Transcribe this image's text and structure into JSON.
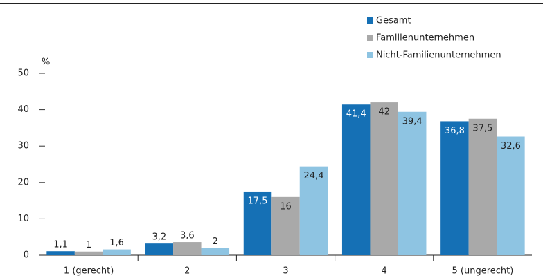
{
  "chart_data": {
    "type": "bar",
    "categories": [
      "1 (gerecht)",
      "2",
      "3",
      "4",
      "5 (ungerecht)"
    ],
    "y_unit": "%",
    "ylim": [
      0,
      50
    ],
    "yticks": [
      0,
      10,
      20,
      30,
      40,
      50
    ],
    "legend": "top-right",
    "series": [
      {
        "name": "Gesamt",
        "color": "#1570b5",
        "values": [
          1.1,
          3.2,
          17.5,
          41.4,
          36.8
        ],
        "value_labels": [
          "1,1",
          "3,2",
          "17,5",
          "41,4",
          "36,8"
        ]
      },
      {
        "name": "Familienunternehmen",
        "color": "#a9a9a9",
        "values": [
          1,
          3.6,
          16,
          42,
          37.5
        ],
        "value_labels": [
          "1",
          "3,6",
          "16",
          "42",
          "37,5"
        ]
      },
      {
        "name": "Nicht-Familienunternehmen",
        "color": "#8ec4e2",
        "values": [
          1.6,
          2,
          24.4,
          39.4,
          32.6
        ],
        "value_labels": [
          "1,6",
          "2",
          "24,4",
          "39,4",
          "32,6"
        ]
      }
    ]
  }
}
